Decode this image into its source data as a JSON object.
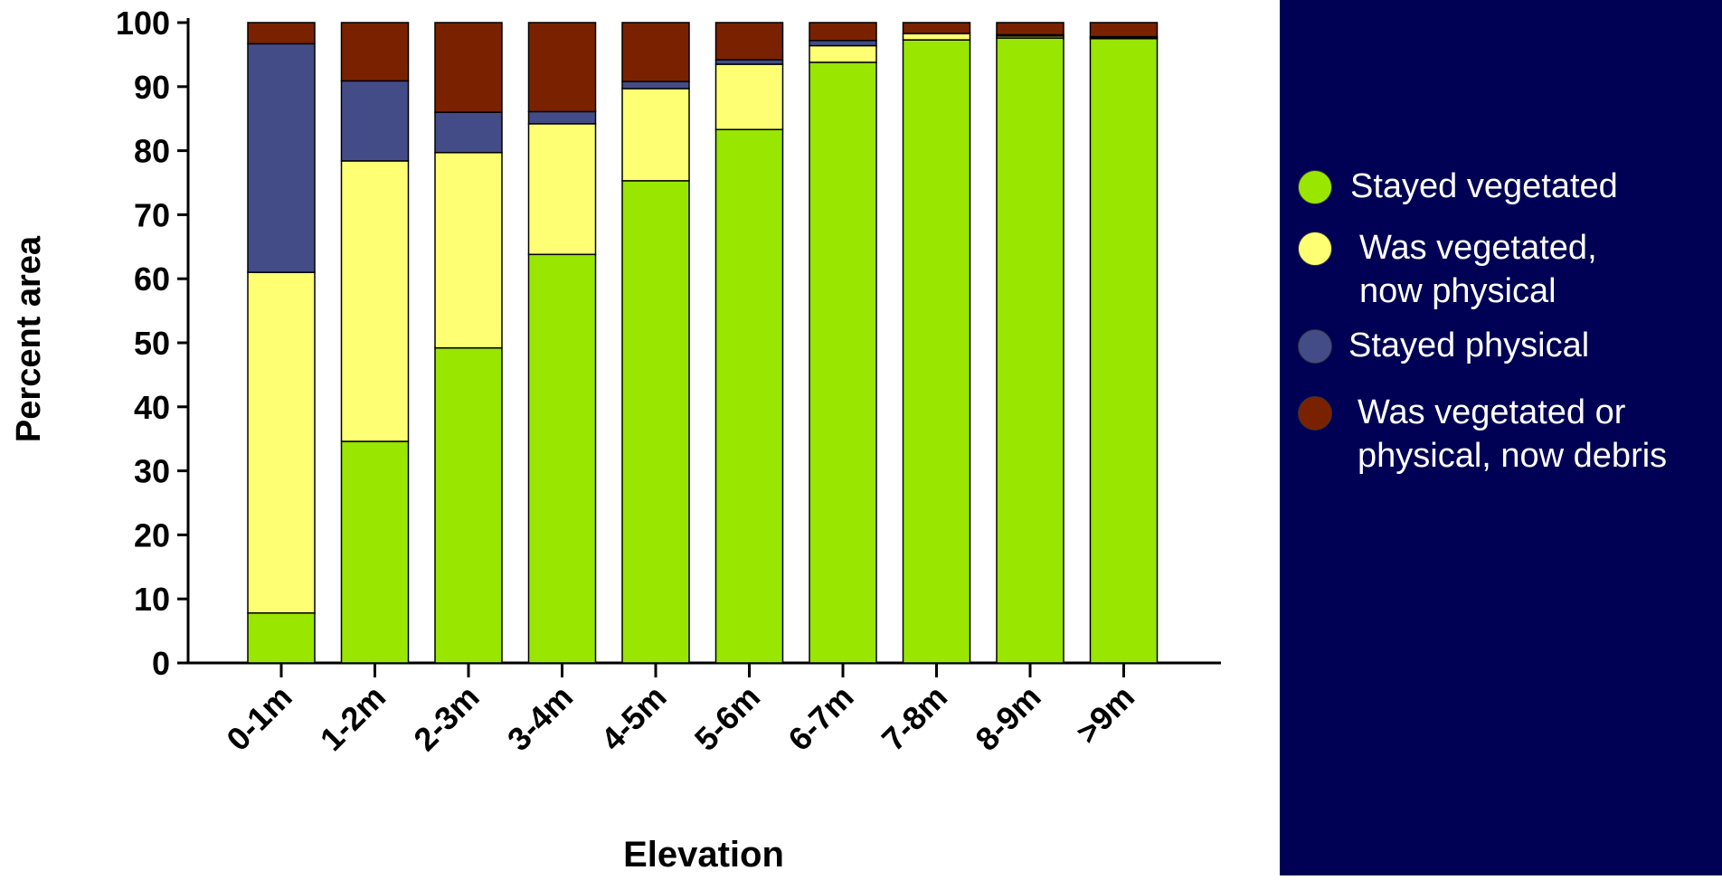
{
  "chart_data": {
    "type": "bar",
    "stacked": true,
    "title": "",
    "xlabel": "Elevation",
    "ylabel": "Percent area",
    "ylim": [
      0,
      100
    ],
    "yticks": [
      0,
      10,
      20,
      30,
      40,
      50,
      60,
      70,
      80,
      90,
      100
    ],
    "categories": [
      "0-1m",
      "1-2m",
      "2-3m",
      "3-4m",
      "4-5m",
      "5-6m",
      "6-7m",
      "7-8m",
      "8-9m",
      ">9m"
    ],
    "series": [
      {
        "name": "Stayed vegetated",
        "color": "#99e600",
        "values": [
          7.8,
          34.6,
          49.2,
          63.8,
          75.3,
          83.3,
          93.8,
          97.3,
          97.6,
          97.5
        ]
      },
      {
        "name": "Was vegetated,\nnow physical",
        "color": "#ffff73",
        "values": [
          53.2,
          43.8,
          30.5,
          20.4,
          14.4,
          10.2,
          2.6,
          1.0,
          0.3,
          0.2
        ]
      },
      {
        "name": "Stayed physical",
        "color": "#444c88",
        "values": [
          35.7,
          12.5,
          6.3,
          1.9,
          1.1,
          0.7,
          0.8,
          0.0,
          0.2,
          0.1
        ]
      },
      {
        "name": "Was vegetated or\nphysical, now debris",
        "color": "#7a2200",
        "values": [
          3.3,
          9.1,
          14.0,
          13.9,
          9.2,
          5.8,
          2.8,
          1.7,
          1.9,
          2.2
        ]
      }
    ],
    "legend_position": "right",
    "grid": false
  }
}
